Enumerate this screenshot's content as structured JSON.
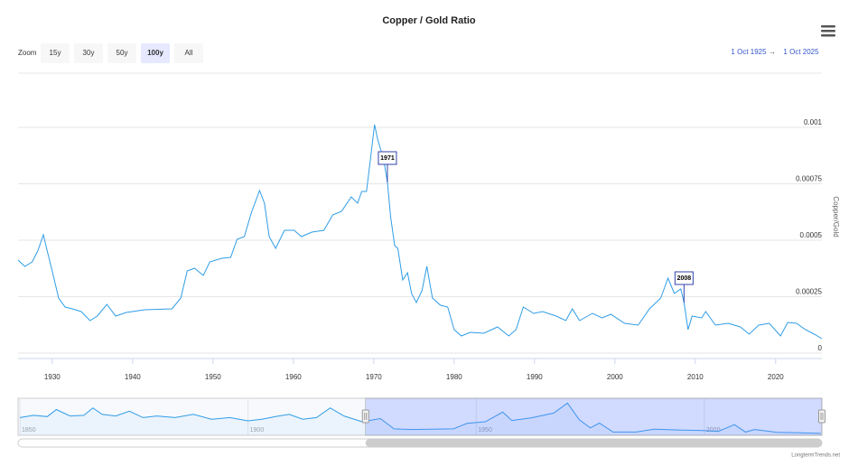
{
  "chart_data": {
    "type": "line",
    "title": "Copper / Gold Ratio",
    "y_axis_title": "Copper/Gold",
    "credit": "LongtermTrends.net",
    "color": "#2f9de6",
    "grid": true,
    "xlim": [
      1925.75,
      2025.75
    ],
    "xticks": [
      1930,
      1940,
      1950,
      1960,
      1970,
      1980,
      1990,
      2000,
      2010,
      2020
    ],
    "ylim": [
      -2.4e-05,
      0.00124
    ],
    "yticks": [
      0,
      0.00025,
      0.0005,
      0.00075,
      0.001
    ],
    "x": [
      1925.75,
      1926.6,
      1927.5,
      1928.2,
      1928.9,
      1929.3,
      1930,
      1930.8,
      1931.6,
      1932.5,
      1933.6,
      1934.7,
      1935.6,
      1936.8,
      1937.9,
      1939.2,
      1941.5,
      1944.9,
      1946,
      1946.8,
      1947.7,
      1948.8,
      1949.6,
      1951.1,
      1952.2,
      1953,
      1953.9,
      1954.8,
      1955.8,
      1956.4,
      1957,
      1957.8,
      1958.9,
      1960.1,
      1961,
      1962.3,
      1963.8,
      1964.9,
      1966,
      1967.2,
      1968,
      1968.5,
      1969.1,
      1969.6,
      1970.1,
      1970.5,
      1971.2,
      1971.7,
      1972.1,
      1972.6,
      1973,
      1973.6,
      1974.2,
      1974.7,
      1975.3,
      1976,
      1976.6,
      1977.3,
      1978.3,
      1979.2,
      1980,
      1980.9,
      1982,
      1983.7,
      1985.4,
      1986.8,
      1987.7,
      1988.6,
      1989.9,
      1991,
      1992.7,
      1993.9,
      1994.7,
      1995.6,
      1997.2,
      1998.4,
      1999.5,
      2001.2,
      2002.9,
      2004.3,
      2005.7,
      2006.6,
      2007.4,
      2008.2,
      2008.6,
      2009.1,
      2009.6,
      2010.8,
      2011.3,
      2012.5,
      2014.1,
      2015.6,
      2016.7,
      2017.9,
      2019.2,
      2020.6,
      2021.5,
      2022.6,
      2023.7,
      2024.8,
      2025.75
    ],
    "values": [
      0.000412,
      0.000384,
      0.000404,
      0.000452,
      0.000524,
      0.000464,
      0.000364,
      0.000244,
      0.000204,
      0.000196,
      0.000184,
      0.000144,
      0.000164,
      0.000216,
      0.000164,
      0.00018,
      0.000192,
      0.000196,
      0.000244,
      0.000364,
      0.000376,
      0.000344,
      0.000404,
      0.00042,
      0.000424,
      0.000504,
      0.000516,
      0.000624,
      0.00072,
      0.000664,
      0.000516,
      0.000464,
      0.000544,
      0.000544,
      0.000516,
      0.000536,
      0.000544,
      0.000612,
      0.000628,
      0.000692,
      0.000664,
      0.000716,
      0.000716,
      0.000864,
      0.001012,
      0.000944,
      0.000864,
      0.000756,
      0.000604,
      0.000476,
      0.000464,
      0.000324,
      0.000356,
      0.000264,
      0.000224,
      0.000276,
      0.000384,
      0.000244,
      0.000212,
      0.000204,
      0.000104,
      7.6e-05,
      9.2e-05,
      8.8e-05,
      0.000116,
      7.6e-05,
      0.000104,
      0.000204,
      0.000176,
      0.000184,
      0.000164,
      0.000144,
      0.000196,
      0.000144,
      0.000176,
      0.000156,
      0.000172,
      0.000132,
      0.000124,
      0.000196,
      0.000244,
      0.000332,
      0.000264,
      0.000284,
      0.000224,
      0.000104,
      0.000164,
      0.000156,
      0.000184,
      0.000124,
      0.000132,
      0.000116,
      8.4e-05,
      0.000124,
      0.000132,
      7.6e-05,
      0.000136,
      0.000132,
      0.000104,
      8.4e-05,
      6.4e-05
    ],
    "flags": [
      {
        "x": 1971.7,
        "value": 0.000756,
        "label": "1971"
      },
      {
        "x": 2008.6,
        "value": 0.000224,
        "label": "2008"
      }
    ],
    "range_selector": {
      "zoom_label": "Zoom",
      "buttons": [
        "15y",
        "30y",
        "50y",
        "100y",
        "All"
      ],
      "selected": 3,
      "from": "1 Oct 1925",
      "arrow": "→",
      "to": "1 Oct 2025"
    },
    "navigator": {
      "xlim": [
        1849.6,
        2025.75
      ],
      "ylim": [
        0,
        0.00115
      ],
      "xticks": [
        1850,
        1900,
        1950,
        2000
      ],
      "selection": [
        1925.75,
        2025.75
      ],
      "x": [
        1850,
        1853,
        1856,
        1858,
        1861,
        1864,
        1866,
        1868,
        1871,
        1874,
        1877,
        1880,
        1884,
        1888,
        1892,
        1896,
        1900,
        1903,
        1906,
        1909,
        1912,
        1915,
        1918,
        1921,
        1925,
        1929,
        1932,
        1936,
        1940,
        1945,
        1948,
        1952,
        1955.8,
        1957.8,
        1962,
        1967,
        1970,
        1972.6,
        1975,
        1977,
        1980,
        1985,
        1989,
        1995,
        2000,
        2003,
        2006.6,
        2009,
        2011,
        2016,
        2020,
        2025.5
      ],
      "values": [
        0.00055,
        0.00062,
        0.00058,
        0.0008,
        0.0006,
        0.00062,
        0.00085,
        0.00065,
        0.0006,
        0.00075,
        0.00055,
        0.0006,
        0.00055,
        0.00065,
        0.0005,
        0.00055,
        0.00045,
        0.0005,
        0.00058,
        0.00065,
        0.0005,
        0.00055,
        0.00085,
        0.0006,
        0.00042,
        0.00052,
        0.0002,
        0.00018,
        0.00019,
        0.0002,
        0.00037,
        0.00042,
        0.00072,
        0.00046,
        0.00054,
        0.00069,
        0.001,
        0.00048,
        0.00023,
        0.00038,
        0.0001,
        0.0001,
        0.00019,
        0.00016,
        0.00015,
        0.00012,
        0.00033,
        0.0001,
        0.00018,
        9e-05,
        8e-05,
        6e-05
      ]
    }
  }
}
